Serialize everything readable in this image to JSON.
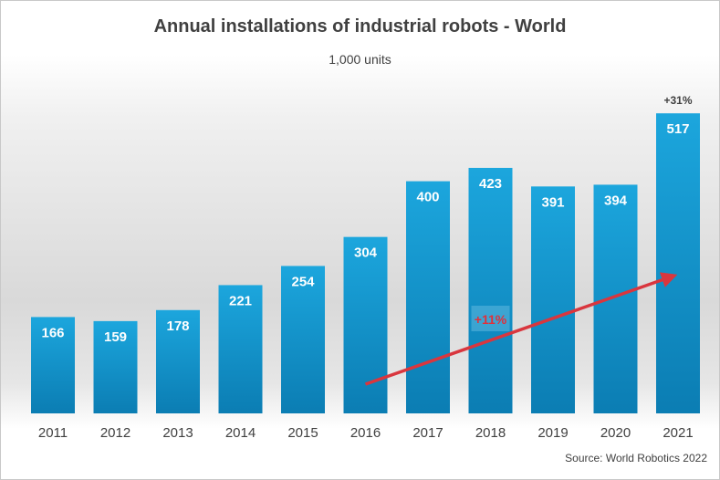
{
  "chart_data": {
    "type": "bar",
    "title": "Annual installations of industrial robots - World",
    "subtitle": "1,000 units",
    "categories": [
      "2011",
      "2012",
      "2013",
      "2014",
      "2015",
      "2016",
      "2017",
      "2018",
      "2019",
      "2020",
      "2021"
    ],
    "values": [
      166,
      159,
      178,
      221,
      254,
      304,
      400,
      423,
      391,
      394,
      517
    ],
    "ylim": [
      0,
      600
    ],
    "grid": false,
    "annotations": [
      {
        "text": "+31%",
        "category": "2021",
        "position": "above bar"
      },
      {
        "text": "+11%",
        "category": "2018",
        "position": "on trend arrow"
      }
    ],
    "trend_arrow": {
      "from_category": "2016",
      "to_category": "2021"
    },
    "source": "Source: World Robotics 2022",
    "colors": {
      "bar_top": "#1aa0d8",
      "bar_bottom": "#0a7fb5",
      "arrow": "#d9363e",
      "text": "#404040"
    }
  }
}
